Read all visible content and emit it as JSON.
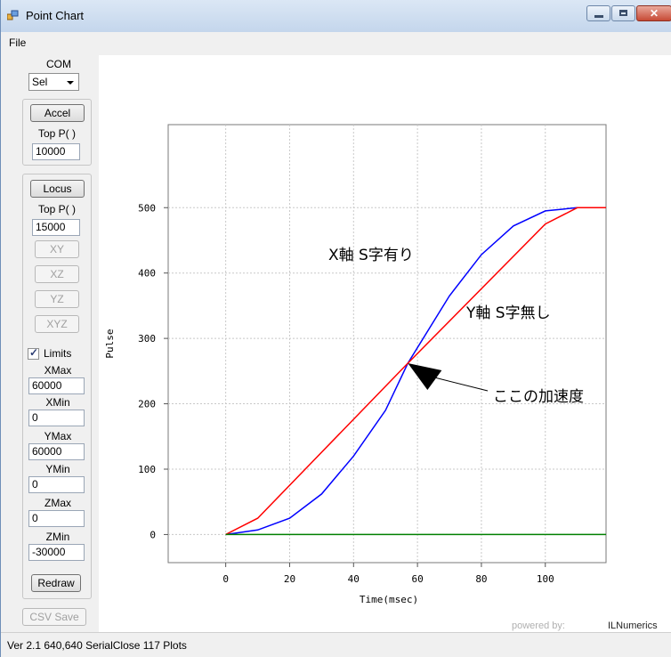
{
  "window": {
    "title": "Point Chart"
  },
  "menu": {
    "file": "File"
  },
  "panel": {
    "com_label": "COM",
    "com_value": "Sel",
    "accel_button": "Accel",
    "accel_top_label": "Top P( )",
    "accel_top_value": "10000",
    "locus_button": "Locus",
    "locus_top_label": "Top P( )",
    "locus_top_value": "15000",
    "xy_button": "XY",
    "xz_button": "XZ",
    "yz_button": "YZ",
    "xyz_button": "XYZ",
    "limits_label": "Limits",
    "limits_checked": true,
    "xmax_label": "XMax",
    "xmax_value": "60000",
    "xmin_label": "XMin",
    "xmin_value": "0",
    "ymax_label": "YMax",
    "ymax_value": "60000",
    "ymin_label": "YMin",
    "ymin_value": "0",
    "zmax_label": "ZMax",
    "zmax_value": "0",
    "zmin_label": "ZMin",
    "zmin_value": "-30000",
    "redraw_button": "Redraw",
    "csv_button": "CSV Save"
  },
  "status": {
    "text": "Ver 2.1  640,640  SerialClose  117 Plots"
  },
  "chart_data": {
    "type": "line",
    "xlabel": "Time(msec)",
    "ylabel": "Pulse",
    "xlim": [
      -18,
      119
    ],
    "ylim": [
      -43,
      627
    ],
    "xticks": [
      0,
      20,
      40,
      60,
      80,
      100
    ],
    "yticks": [
      0,
      100,
      200,
      300,
      400,
      500
    ],
    "grid": true,
    "series": [
      {
        "color": "#0000ff",
        "x": [
          0,
          10,
          20,
          30,
          40,
          50,
          57,
          70,
          80,
          90,
          100,
          110,
          119
        ],
        "y": [
          0,
          7,
          25,
          62,
          120,
          190,
          262,
          365,
          428,
          472,
          495,
          500,
          500
        ]
      },
      {
        "color": "#ff0000",
        "x": [
          0,
          10,
          57,
          100,
          110,
          119
        ],
        "y": [
          0,
          25,
          262,
          475,
          500,
          500
        ]
      },
      {
        "color": "#008000",
        "x": [
          0,
          119
        ],
        "y": [
          0,
          0
        ]
      }
    ],
    "annotations": [
      {
        "text": "X軸 S字有り"
      },
      {
        "text": "Y軸 S字無し"
      },
      {
        "text": "ここの加速度"
      }
    ],
    "credit_prefix": "powered by:",
    "credit_brand": "ILNumerics"
  }
}
